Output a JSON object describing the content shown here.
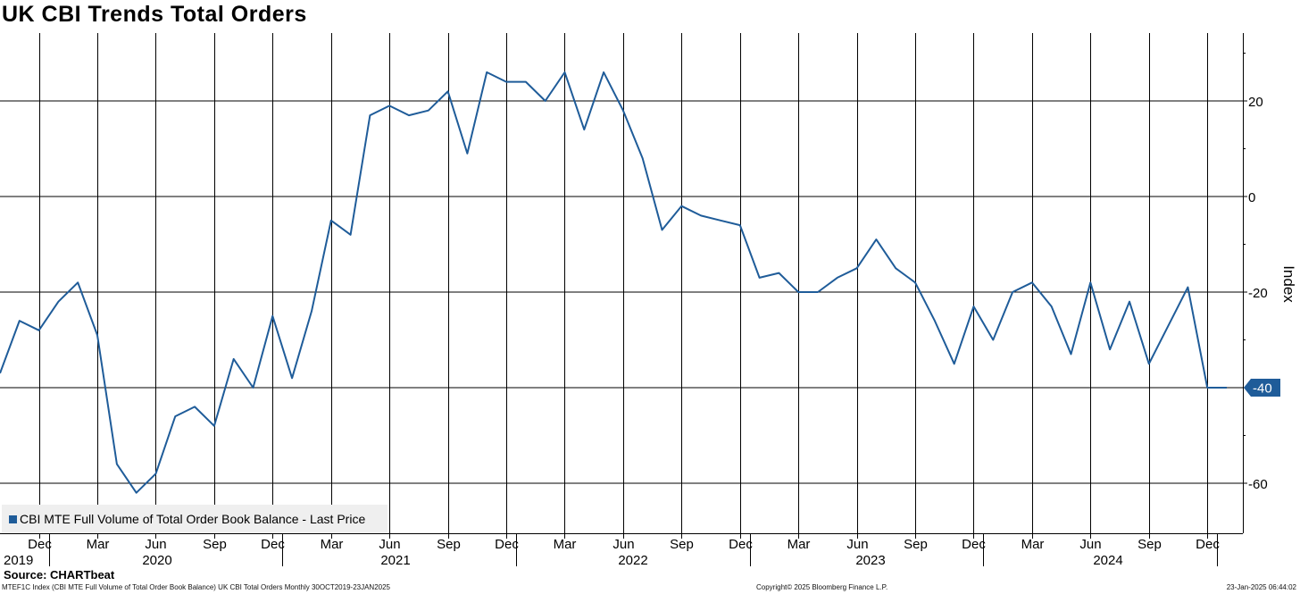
{
  "chart_data": {
    "type": "line",
    "title": "UK CBI Trends Total Orders",
    "ylabel": "Index",
    "ylim": [
      -70,
      34
    ],
    "yticks": [
      20,
      0,
      -20,
      -40,
      -60
    ],
    "grid": true,
    "legend_placement": "bottom-left",
    "x_month_labels": [
      "Dec",
      "Mar",
      "Jun",
      "Sep",
      "Dec",
      "Mar",
      "Jun",
      "Sep",
      "Dec",
      "Mar",
      "Jun",
      "Sep",
      "Dec",
      "Mar",
      "Jun",
      "Sep",
      "Dec",
      "Mar",
      "Jun",
      "Sep",
      "Dec"
    ],
    "x_year_labels": [
      "2019",
      "2020",
      "2021",
      "2022",
      "2023",
      "2024"
    ],
    "last_value_label": "-40",
    "series": [
      {
        "name": "CBI MTE Full Volume of Total Order Book Balance - Last Price",
        "color": "#1f5c99",
        "x": [
          "2019-10",
          "2019-11",
          "2019-12",
          "2020-01",
          "2020-02",
          "2020-03",
          "2020-04",
          "2020-05",
          "2020-06",
          "2020-07",
          "2020-08",
          "2020-09",
          "2020-10",
          "2020-11",
          "2020-12",
          "2021-01",
          "2021-02",
          "2021-03",
          "2021-04",
          "2021-05",
          "2021-06",
          "2021-07",
          "2021-08",
          "2021-09",
          "2021-10",
          "2021-11",
          "2021-12",
          "2022-01",
          "2022-02",
          "2022-03",
          "2022-04",
          "2022-05",
          "2022-06",
          "2022-07",
          "2022-08",
          "2022-09",
          "2022-10",
          "2022-11",
          "2022-12",
          "2023-01",
          "2023-02",
          "2023-03",
          "2023-04",
          "2023-05",
          "2023-06",
          "2023-07",
          "2023-08",
          "2023-09",
          "2023-10",
          "2023-11",
          "2023-12",
          "2024-01",
          "2024-02",
          "2024-03",
          "2024-04",
          "2024-05",
          "2024-06",
          "2024-07",
          "2024-08",
          "2024-09",
          "2024-10",
          "2024-11",
          "2024-12",
          "2025-01"
        ],
        "values": [
          -37,
          -26,
          -28,
          -22,
          -18,
          -29,
          -56,
          -62,
          -58,
          -46,
          -44,
          -48,
          -34,
          -40,
          -25,
          -38,
          -24,
          -5,
          -8,
          17,
          19,
          17,
          18,
          22,
          9,
          26,
          24,
          24,
          20,
          26,
          14,
          26,
          18,
          8,
          -7,
          -2,
          -4,
          -5,
          -6,
          -17,
          -16,
          -20,
          -20,
          -17,
          -15,
          -9,
          -15,
          -18,
          -26,
          -35,
          -23,
          -30,
          -20,
          -18,
          -23,
          -33,
          -18,
          -32,
          -22,
          -35,
          -27,
          -19,
          -40,
          -40
        ]
      }
    ]
  },
  "source": "Source: CHARTbeat",
  "footer": {
    "left": "MTEF1C Index (CBI MTE Full Volume of Total Order Book Balance) UK CBI Total Orders  Monthly 30OCT2019-23JAN2025",
    "middle": "Copyright© 2025 Bloomberg Finance L.P.",
    "right": "23-Jan-2025 06:44:02"
  }
}
